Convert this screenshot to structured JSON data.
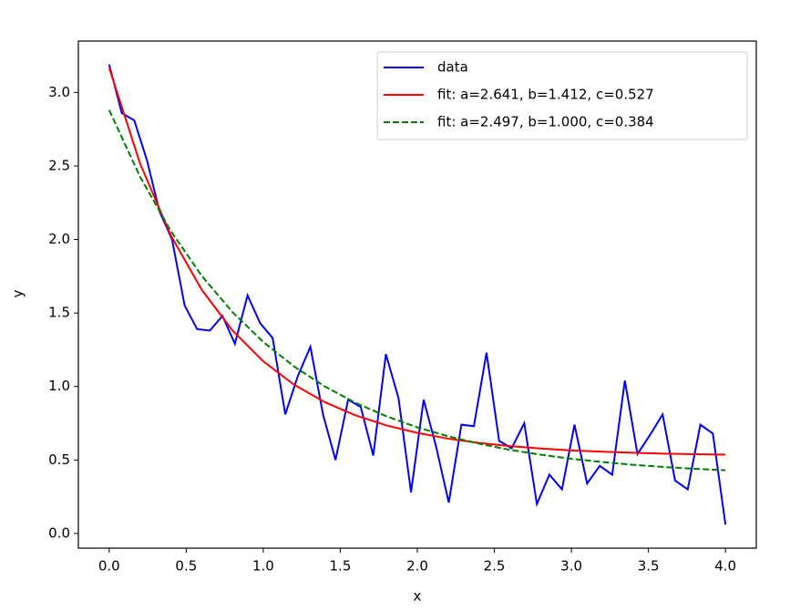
{
  "chart_data": {
    "type": "line",
    "xlabel": "x",
    "ylabel": "y",
    "xlim": [
      -0.2,
      4.2
    ],
    "ylim": [
      -0.1,
      3.35
    ],
    "xticks": [
      {
        "value": 0,
        "label": "0.0"
      },
      {
        "value": 0.5,
        "label": "0.5"
      },
      {
        "value": 1,
        "label": "1.0"
      },
      {
        "value": 1.5,
        "label": "1.5"
      },
      {
        "value": 2,
        "label": "2.0"
      },
      {
        "value": 2.5,
        "label": "2.5"
      },
      {
        "value": 3,
        "label": "3.0"
      },
      {
        "value": 3.5,
        "label": "3.5"
      },
      {
        "value": 4,
        "label": "4.0"
      }
    ],
    "yticks": [
      {
        "value": 0,
        "label": "0.0"
      },
      {
        "value": 0.5,
        "label": "0.5"
      },
      {
        "value": 1,
        "label": "1.0"
      },
      {
        "value": 1.5,
        "label": "1.5"
      },
      {
        "value": 2,
        "label": "2.0"
      },
      {
        "value": 2.5,
        "label": "2.5"
      },
      {
        "value": 3,
        "label": "3.0"
      }
    ],
    "legend": "upper right",
    "series": [
      {
        "name": "data",
        "color": "#0000ff",
        "linestyle": "solid",
        "x": [
          0,
          0.082,
          0.163,
          0.245,
          0.327,
          0.408,
          0.49,
          0.571,
          0.653,
          0.735,
          0.816,
          0.898,
          0.98,
          1.061,
          1.143,
          1.224,
          1.306,
          1.388,
          1.469,
          1.551,
          1.633,
          1.714,
          1.796,
          1.878,
          1.959,
          2.041,
          2.122,
          2.204,
          2.286,
          2.367,
          2.449,
          2.531,
          2.612,
          2.694,
          2.776,
          2.857,
          2.939,
          3.02,
          3.102,
          3.184,
          3.265,
          3.347,
          3.429,
          3.51,
          3.592,
          3.673,
          3.755,
          3.837,
          3.918,
          4
        ],
        "values": [
          3.19,
          2.86,
          2.81,
          2.54,
          2.19,
          2.0,
          1.55,
          1.39,
          1.38,
          1.48,
          1.29,
          1.62,
          1.43,
          1.33,
          0.81,
          1.07,
          1.27,
          0.81,
          0.5,
          0.91,
          0.86,
          0.53,
          1.22,
          0.92,
          0.28,
          0.91,
          0.59,
          0.21,
          0.74,
          0.73,
          1.23,
          0.63,
          0.58,
          0.75,
          0.2,
          0.4,
          0.3,
          0.74,
          0.34,
          0.46,
          0.4,
          1.04,
          0.54,
          0.67,
          0.81,
          0.36,
          0.3,
          0.74,
          0.68,
          0.06
        ]
      },
      {
        "name": "fit: a=2.641, b=1.412, c=0.527",
        "color": "#ff0000",
        "linestyle": "solid",
        "x": [
          0,
          0.2,
          0.4,
          0.6,
          0.8,
          1.0,
          1.2,
          1.4,
          1.6,
          1.8,
          2.0,
          2.2,
          2.4,
          2.6,
          2.8,
          3.0,
          3.2,
          3.4,
          3.6,
          3.8,
          4.0
        ],
        "values": [
          3.168,
          2.518,
          2.028,
          1.659,
          1.381,
          1.171,
          1.012,
          0.893,
          0.803,
          0.735,
          0.684,
          0.645,
          0.616,
          0.594,
          0.578,
          0.565,
          0.556,
          0.549,
          0.543,
          0.539,
          0.536
        ]
      },
      {
        "name": "fit: a=2.497, b=1.000, c=0.384",
        "color": "#008000",
        "linestyle": "dashed",
        "x": [
          0,
          0.2,
          0.4,
          0.6,
          0.8,
          1.0,
          1.2,
          1.4,
          1.6,
          1.8,
          2.0,
          2.2,
          2.4,
          2.6,
          2.8,
          3.0,
          3.2,
          3.4,
          3.6,
          3.8,
          4.0
        ],
        "values": [
          2.881,
          2.428,
          2.058,
          1.754,
          1.506,
          1.303,
          1.136,
          1.0,
          0.888,
          0.797,
          0.722,
          0.661,
          0.611,
          0.569,
          0.536,
          0.508,
          0.486,
          0.467,
          0.452,
          0.44,
          0.43
        ]
      }
    ]
  }
}
